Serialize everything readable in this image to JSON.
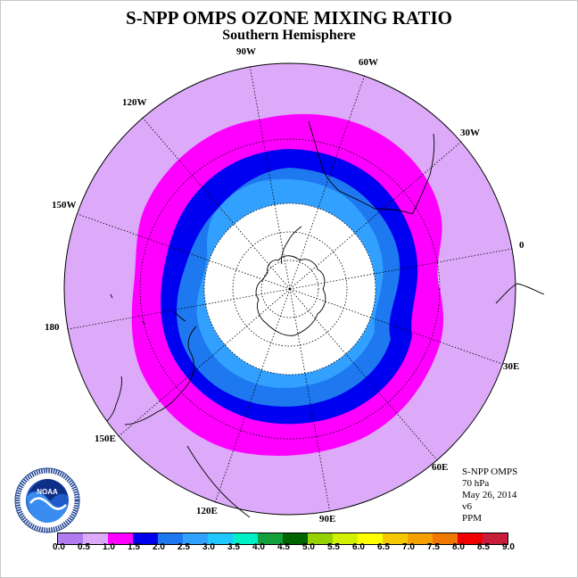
{
  "title": "S-NPP OMPS OZONE MIXING RATIO",
  "subtitle": "Southern Hemisphere",
  "info": {
    "instrument": "S-NPP OMPS",
    "level": "70 hPa",
    "date": "May 26, 2014",
    "version": "v6",
    "units": "PPM"
  },
  "map": {
    "projection": "south polar stereographic",
    "longitude_labels": [
      "90W",
      "60W",
      "30W",
      "0",
      "30E",
      "60E",
      "90E",
      "120E",
      "150E",
      "180",
      "150W",
      "120W"
    ],
    "colors": {
      "outer_band": "#dcaaf8",
      "band_1_0_1_5": "#ff00ff",
      "band_1_5_2_0": "#0000f0",
      "band_2_0_2_5": "#1e78f0",
      "band_2_5_3_0": "#32a0ff",
      "polar_no_data": "#ffffff"
    }
  },
  "colorbar": {
    "ticks": [
      "0.0",
      "0.5",
      "1.0",
      "1.5",
      "2.0",
      "2.5",
      "3.0",
      "3.5",
      "4.0",
      "4.5",
      "5.0",
      "5.5",
      "6.0",
      "6.5",
      "7.0",
      "7.5",
      "8.0",
      "8.5",
      "9.0"
    ],
    "colors": [
      "#b07cf0",
      "#dcaaf8",
      "#ff00ff",
      "#0000f0",
      "#1e78f0",
      "#32a0ff",
      "#1ec8ff",
      "#00f0c8",
      "#14a03c",
      "#006400",
      "#96d200",
      "#d2f000",
      "#ffff00",
      "#f5c800",
      "#f5a000",
      "#f07800",
      "#f00000",
      "#c81e3c",
      "#8c5a3c"
    ]
  }
}
